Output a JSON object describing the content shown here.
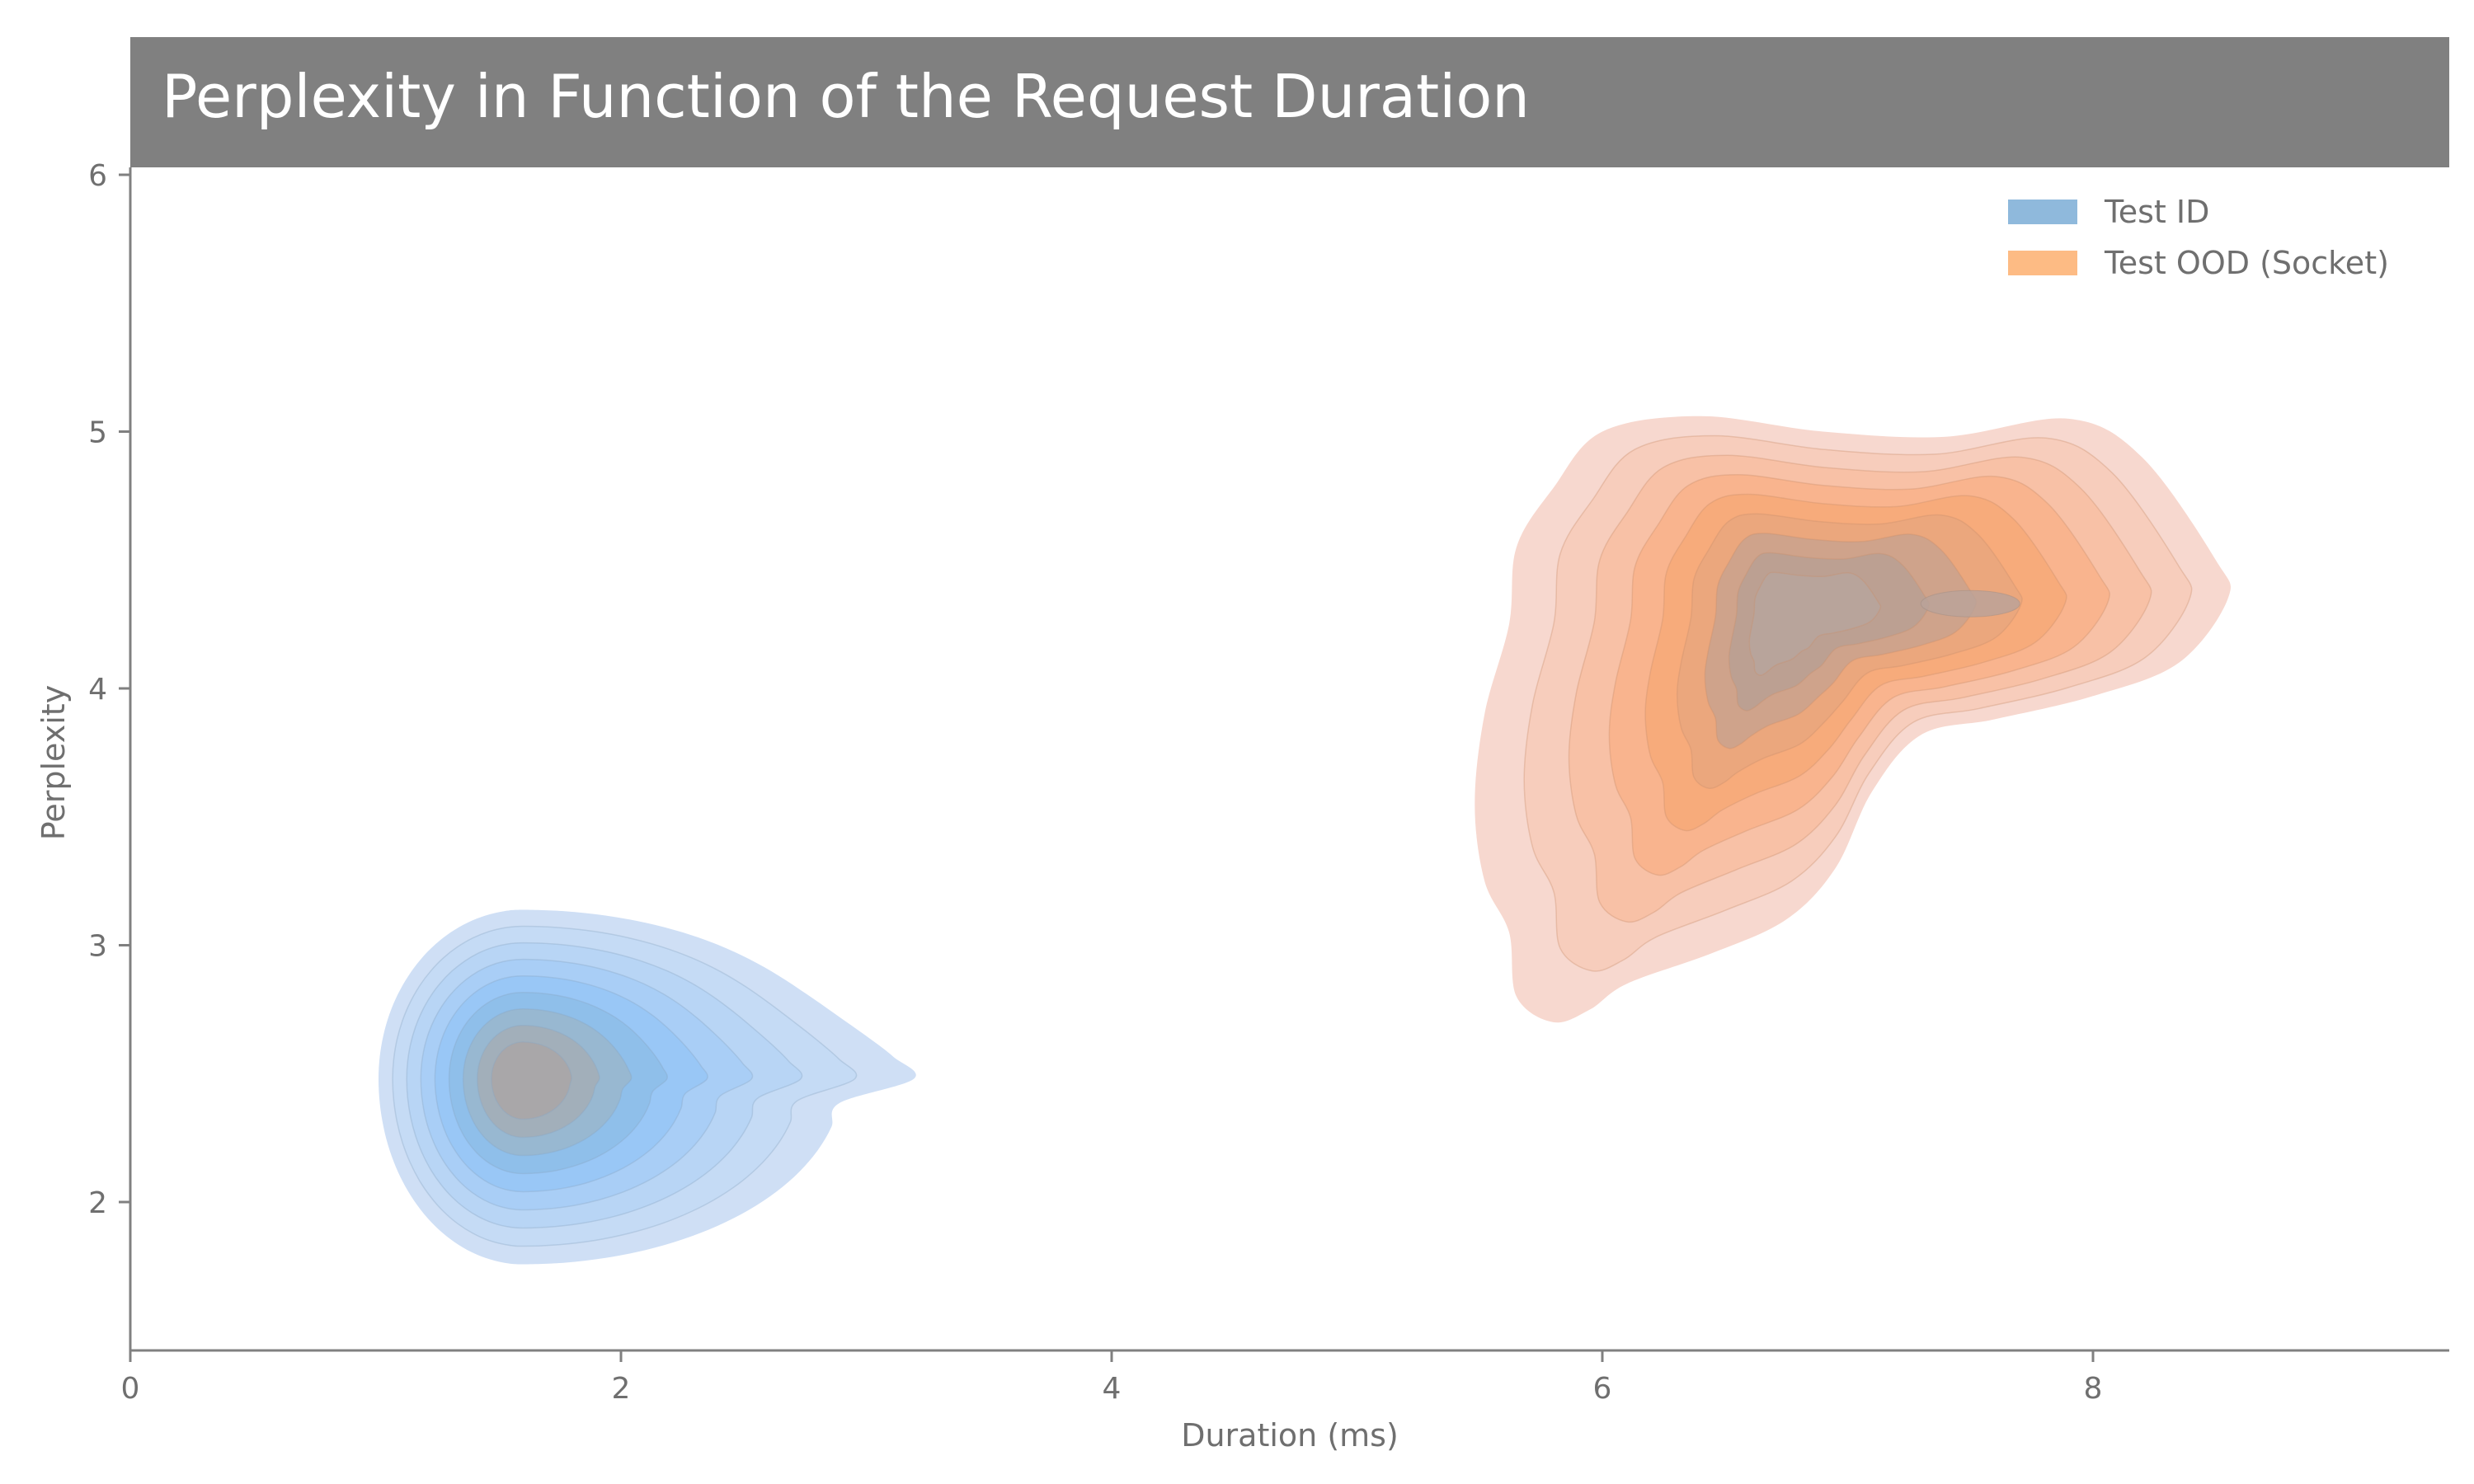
{
  "chart_data": {
    "type": "kde-contour",
    "title": "Perplexity in Function of the Request Duration",
    "xlabel": "Duration (ms)",
    "ylabel": "Perplexity",
    "xlim": [
      0,
      9.47
    ],
    "ylim": [
      1.42,
      6.51
    ],
    "xticks": [
      0,
      2,
      4,
      6,
      8
    ],
    "yticks": [
      2,
      3,
      4,
      5,
      6
    ],
    "grid": false,
    "legend_position": "top-right",
    "series": [
      {
        "name": "Test ID",
        "legend_color": "#8fb9dc",
        "color": "#9cc6f0",
        "peak": [
          1.6,
          2.48
        ],
        "range_x": [
          1.03,
          2.5
        ],
        "range_y": [
          1.76,
          3.13
        ],
        "levels": 9
      },
      {
        "name": "Test OOD (Socket)",
        "legend_color": "#fdbb84",
        "color": "#f7a77a",
        "peak": [
          6.75,
          4.35
        ],
        "secondary_peak": [
          7.5,
          4.33
        ],
        "range_x": [
          5.45,
          8.55
        ],
        "range_y": [
          2.7,
          5.06
        ],
        "levels": 9
      }
    ]
  }
}
